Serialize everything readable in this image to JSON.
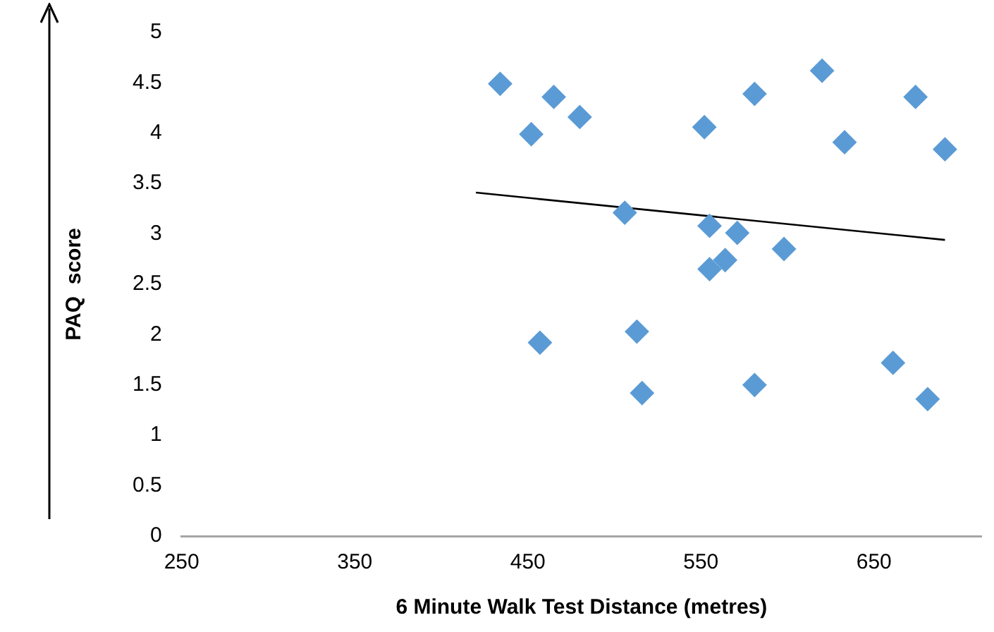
{
  "chart_data": {
    "type": "scatter",
    "xlabel": "6 Minute Walk Test Distance (metres)",
    "ylabel": "PAQ  score",
    "xlim": [
      250,
      712
    ],
    "xticks": [
      250,
      350,
      450,
      550,
      650
    ],
    "ylim": [
      0,
      5
    ],
    "yticks": [
      0,
      0.5,
      1,
      1.5,
      2,
      2.5,
      3,
      3.5,
      4,
      4.5,
      5
    ],
    "grid": false,
    "legend": false,
    "marker": "diamond",
    "series": [
      {
        "type": "scatter",
        "color": "#5b9bd5",
        "x": [
          434,
          465,
          452,
          480,
          552,
          581,
          620,
          674,
          633,
          691,
          506,
          555,
          571,
          598,
          564,
          555,
          457,
          513,
          516,
          581,
          661,
          681
        ],
        "values": [
          4.49,
          4.36,
          3.99,
          4.16,
          4.06,
          4.39,
          4.62,
          4.36,
          3.91,
          3.84,
          3.21,
          3.08,
          3.01,
          2.85,
          2.74,
          2.65,
          1.92,
          2.03,
          1.42,
          1.5,
          1.72,
          1.36
        ]
      },
      {
        "type": "line",
        "color": "#000000",
        "marker": "none",
        "x": [
          420,
          691
        ],
        "values": [
          3.41,
          2.94
        ]
      }
    ]
  }
}
